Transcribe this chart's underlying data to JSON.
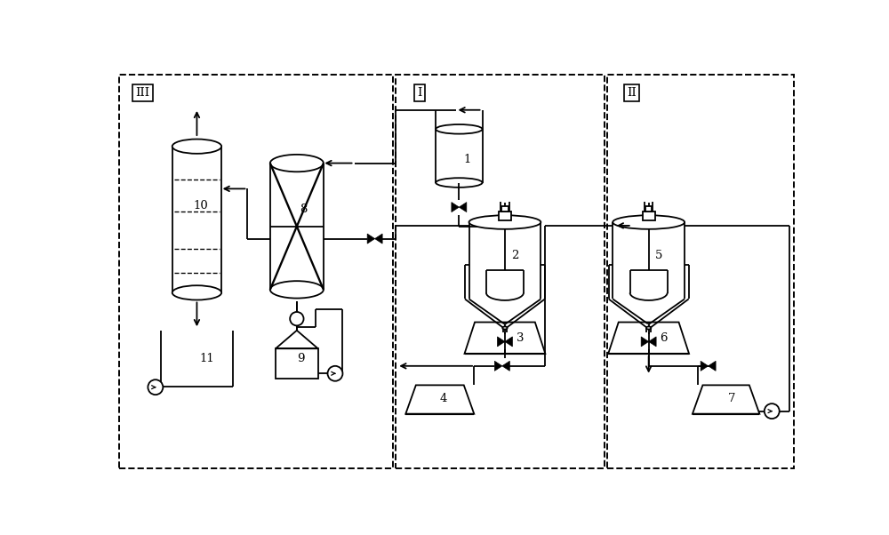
{
  "fig_width": 10.0,
  "fig_height": 6.02,
  "dpi": 100,
  "bg_color": "#ffffff",
  "lw": 1.3,
  "boxes": {
    "III": [
      0.08,
      0.12,
      4.0,
      5.75
    ],
    "I": [
      4.12,
      0.12,
      3.05,
      5.75
    ],
    "II": [
      7.22,
      0.12,
      2.72,
      5.75
    ]
  },
  "box_labels": {
    "III": [
      0.28,
      5.6
    ],
    "I": [
      4.32,
      5.6
    ],
    "II": [
      7.42,
      5.6
    ]
  }
}
